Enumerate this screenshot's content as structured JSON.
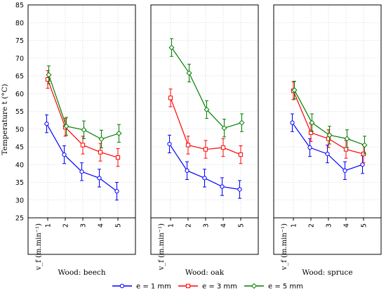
{
  "chart_data": {
    "type": "line",
    "ylabel": "Temperature t (°C)",
    "xlabel": "v_f (m.min⁻¹)",
    "x_categories": [
      "1",
      "2",
      "3",
      "4",
      "5"
    ],
    "y_ticks": [
      "25",
      "30",
      "35",
      "40",
      "45",
      "50",
      "55",
      "60",
      "65",
      "70",
      "75",
      "80",
      "85"
    ],
    "ylim": [
      25,
      85
    ],
    "grid": true,
    "legend_position": "bottom-center",
    "panels": [
      {
        "title": "Wood: beech",
        "series": [
          {
            "name": "e = 1 mm",
            "color": "#0000ff",
            "marker": "circle",
            "values": [
              51.5,
              42.8,
              38.0,
              36.2,
              32.5
            ],
            "error": [
              2.5,
              2.5,
              2.5,
              2.5,
              2.5
            ]
          },
          {
            "name": "e = 3 mm",
            "color": "#ff0000",
            "marker": "square",
            "values": [
              64.0,
              50.5,
              45.5,
              43.5,
              42.0
            ],
            "error": [
              2.5,
              2.5,
              2.5,
              2.5,
              2.5
            ]
          },
          {
            "name": "e = 5 mm",
            "color": "#008000",
            "marker": "diamond",
            "values": [
              65.3,
              50.8,
              49.8,
              47.2,
              48.8
            ],
            "error": [
              2.5,
              2.5,
              2.5,
              2.5,
              2.5
            ]
          }
        ]
      },
      {
        "title": "Wood: oak",
        "series": [
          {
            "name": "e = 1 mm",
            "color": "#0000ff",
            "marker": "circle",
            "values": [
              45.8,
              38.3,
              36.2,
              33.8,
              33.0
            ],
            "error": [
              2.5,
              2.5,
              2.5,
              2.5,
              2.5
            ]
          },
          {
            "name": "e = 3 mm",
            "color": "#ff0000",
            "marker": "square",
            "values": [
              58.8,
              45.5,
              44.3,
              44.8,
              42.8
            ],
            "error": [
              2.5,
              2.5,
              2.5,
              2.5,
              2.5
            ]
          },
          {
            "name": "e = 5 mm",
            "color": "#008000",
            "marker": "diamond",
            "values": [
              73.0,
              65.8,
              55.5,
              50.3,
              51.8
            ],
            "error": [
              2.5,
              2.5,
              2.5,
              2.5,
              2.5
            ]
          }
        ]
      },
      {
        "title": "Wood: spruce",
        "series": [
          {
            "name": "e = 1 mm",
            "color": "#0000ff",
            "marker": "circle",
            "values": [
              51.8,
              44.8,
              43.0,
              38.3,
              40.0
            ],
            "error": [
              2.5,
              2.5,
              2.5,
              2.5,
              2.5
            ]
          },
          {
            "name": "e = 3 mm",
            "color": "#ff0000",
            "marker": "square",
            "values": [
              60.8,
              49.0,
              47.3,
              44.3,
              43.0
            ],
            "error": [
              2.5,
              2.5,
              2.5,
              2.5,
              2.5
            ]
          },
          {
            "name": "e = 5 mm",
            "color": "#008000",
            "marker": "diamond",
            "values": [
              61.0,
              51.8,
              48.3,
              47.3,
              45.5
            ],
            "error": [
              2.5,
              2.5,
              2.5,
              2.5,
              2.5
            ]
          }
        ]
      }
    ],
    "legend": [
      {
        "label": "e = 1 mm",
        "color": "#0000ff",
        "marker": "circle"
      },
      {
        "label": "e = 3 mm",
        "color": "#ff0000",
        "marker": "square"
      },
      {
        "label": "e = 5 mm",
        "color": "#008000",
        "marker": "diamond"
      }
    ]
  }
}
